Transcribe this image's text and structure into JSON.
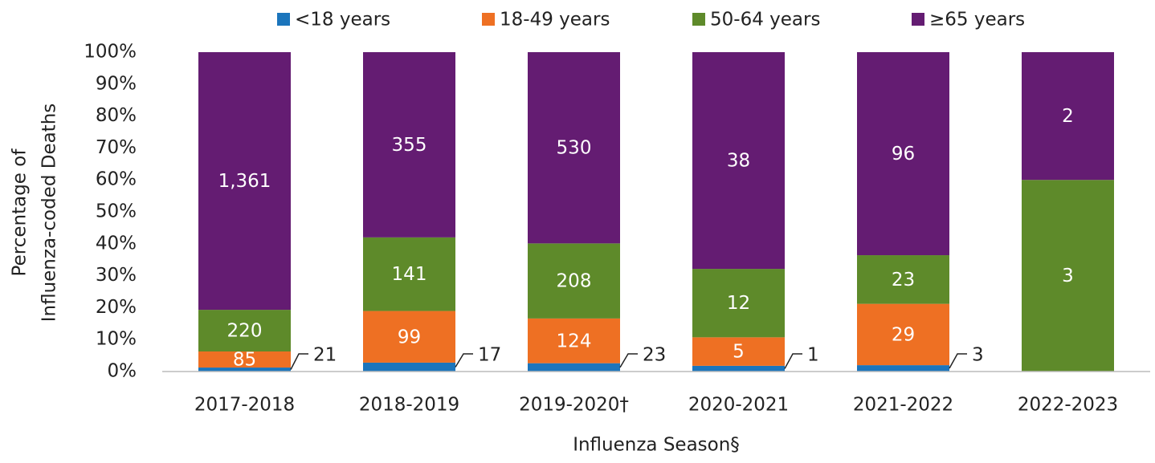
{
  "chart_data": {
    "type": "bar",
    "stacking": "percent",
    "ylabel": [
      "Percentage of",
      "Influenza-coded Deaths"
    ],
    "xlabel": "Influenza Season§",
    "categories": [
      "2017-2018",
      "2018-2019",
      "2019-2020†",
      "2020-2021",
      "2021-2022",
      "2022-2023"
    ],
    "series": [
      {
        "name": "<18 years",
        "color": "#1b75bc",
        "values": [
          21,
          17,
          23,
          1,
          3,
          null
        ]
      },
      {
        "name": "18-49 years",
        "color": "#ee7023",
        "values": [
          85,
          99,
          124,
          5,
          29,
          null
        ]
      },
      {
        "name": "50-64 years",
        "color": "#5e8a2a",
        "values": [
          220,
          141,
          208,
          12,
          23,
          3
        ]
      },
      {
        "name": "≥65 years",
        "color": "#641c72",
        "values": [
          1361,
          355,
          530,
          38,
          96,
          2
        ]
      }
    ],
    "value_labels": [
      [
        "21",
        "17",
        "23",
        "1",
        "3",
        null
      ],
      [
        "85",
        "99",
        "124",
        "5",
        "29",
        null
      ],
      [
        "220",
        "141",
        "208",
        "12",
        "23",
        "3"
      ],
      [
        "1,361",
        "355",
        "530",
        "38",
        "96",
        "2"
      ]
    ],
    "ylim": [
      0,
      100
    ],
    "yticks": [
      {
        "value": 0,
        "label": "0%"
      },
      {
        "value": 10,
        "label": "10%"
      },
      {
        "value": 20,
        "label": "20%"
      },
      {
        "value": 30,
        "label": "30%"
      },
      {
        "value": 40,
        "label": "40%"
      },
      {
        "value": 50,
        "label": "50%"
      },
      {
        "value": 60,
        "label": "60%"
      },
      {
        "value": 70,
        "label": "70%"
      },
      {
        "value": 80,
        "label": "80%"
      },
      {
        "value": 90,
        "label": "90%"
      },
      {
        "value": 100,
        "label": "100%"
      }
    ],
    "legend": "top"
  }
}
